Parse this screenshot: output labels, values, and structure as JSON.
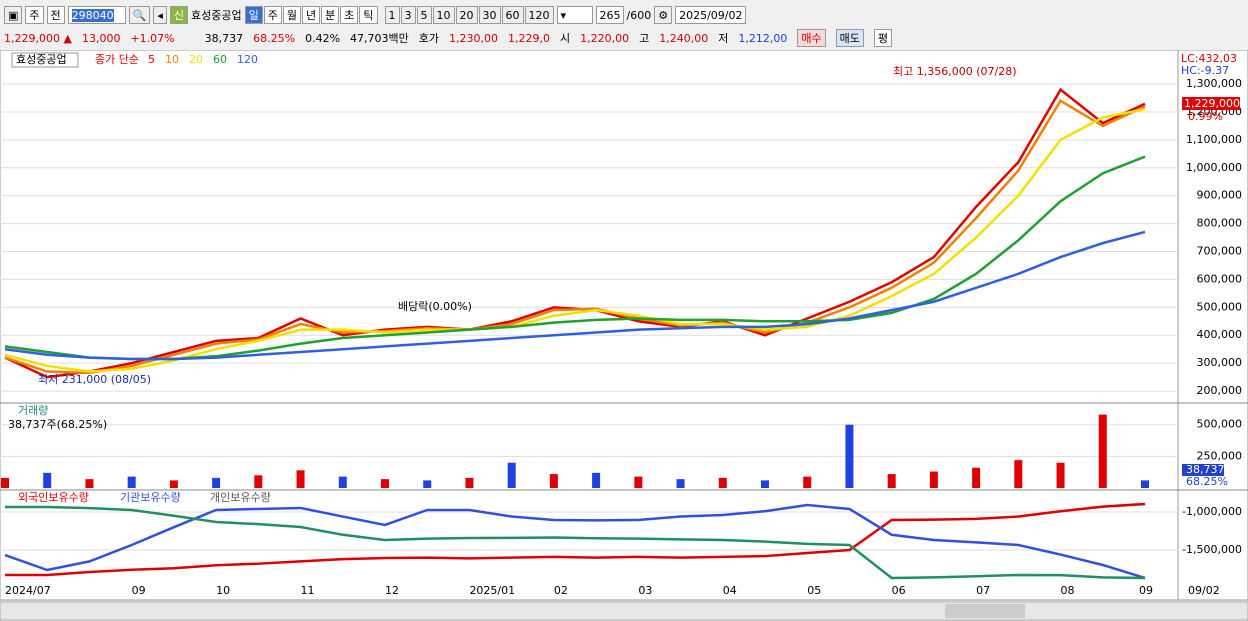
{
  "toolbar": {
    "market": "주",
    "prev": "전",
    "code": "298040",
    "badge": "신",
    "name": "효성중공업",
    "periods": [
      "일",
      "주",
      "월",
      "년",
      "분",
      "초",
      "틱"
    ],
    "intervals": [
      "1",
      "3",
      "5",
      "10",
      "20",
      "30",
      "60",
      "120"
    ],
    "count": "265",
    "max": "/600",
    "date": "2025/09/02"
  },
  "quote": {
    "price": "1,229,000 ▲",
    "change": "13,000",
    "rate": "+1.07%",
    "volume": "38,737",
    "vol_ratio": "68.25%",
    "turnover": "0.42%",
    "amount": "47,703백만",
    "ask_label": "호가",
    "ask": "1,230,00",
    "bid": "1,229,0",
    "open_label": "시",
    "open": "1,220,00",
    "high_label": "고",
    "high": "1,240,00",
    "low_label": "저",
    "low": "1,212,00",
    "buy": "매수",
    "sell": "매도",
    "avg": "평"
  },
  "chart_data": [
    {
      "type": "line",
      "title": "효성중공업",
      "legend_prefix": "종가 단순",
      "categories": [
        "2024/07",
        null,
        null,
        "09",
        null,
        "10",
        null,
        "11",
        null,
        "12",
        null,
        "2025/01",
        null,
        "02",
        null,
        "03",
        null,
        "04",
        null,
        "05",
        null,
        "06",
        null,
        "07",
        null,
        "08",
        null,
        "09"
      ],
      "series": [
        {
          "name": "5",
          "color": "#e00000",
          "values": [
            320000,
            250000,
            270000,
            300000,
            340000,
            380000,
            390000,
            460000,
            400000,
            420000,
            430000,
            420000,
            450000,
            500000,
            490000,
            450000,
            430000,
            450000,
            400000,
            460000,
            520000,
            590000,
            680000,
            860000,
            1020000,
            1280000,
            1160000,
            1229000
          ]
        },
        {
          "name": "10",
          "color": "#f08000",
          "values": [
            320000,
            270000,
            265000,
            290000,
            330000,
            370000,
            385000,
            440000,
            410000,
            415000,
            425000,
            420000,
            440000,
            490000,
            495000,
            460000,
            435000,
            445000,
            410000,
            445000,
            500000,
            570000,
            660000,
            820000,
            990000,
            1240000,
            1150000,
            1220000
          ]
        },
        {
          "name": "20",
          "color": "#f0e000",
          "values": [
            330000,
            290000,
            270000,
            280000,
            310000,
            350000,
            380000,
            420000,
            420000,
            410000,
            420000,
            420000,
            430000,
            470000,
            490000,
            470000,
            440000,
            440000,
            420000,
            430000,
            470000,
            540000,
            620000,
            750000,
            900000,
            1100000,
            1180000,
            1210000
          ]
        },
        {
          "name": "60",
          "color": "#20a030",
          "values": [
            360000,
            340000,
            320000,
            315000,
            315000,
            325000,
            345000,
            370000,
            390000,
            400000,
            410000,
            420000,
            430000,
            445000,
            455000,
            460000,
            455000,
            455000,
            450000,
            450000,
            455000,
            480000,
            530000,
            620000,
            740000,
            880000,
            980000,
            1040000
          ]
        },
        {
          "name": "120",
          "color": "#3060e0",
          "values": [
            350000,
            330000,
            320000,
            315000,
            315000,
            320000,
            330000,
            340000,
            350000,
            360000,
            370000,
            380000,
            390000,
            400000,
            410000,
            420000,
            425000,
            430000,
            430000,
            440000,
            460000,
            490000,
            520000,
            570000,
            620000,
            680000,
            730000,
            770000
          ]
        }
      ],
      "ylim": [
        168000,
        1404000
      ],
      "yticks": [
        {
          "value": 200000,
          "label": "200,000"
        },
        {
          "value": 300000,
          "label": "300,000"
        },
        {
          "value": 400000,
          "label": "400,000"
        },
        {
          "value": 500000,
          "label": "500,000"
        },
        {
          "value": 600000,
          "label": "600,000"
        },
        {
          "value": 700000,
          "label": "700,000"
        },
        {
          "value": 800000,
          "label": "800,000"
        },
        {
          "value": 900000,
          "label": "900,000"
        },
        {
          "value": 1000000,
          "label": "1,000,000"
        },
        {
          "value": 1100000,
          "label": "1,100,000"
        },
        {
          "value": 1200000,
          "label": "1,200,000"
        },
        {
          "value": 1300000,
          "label": "1,300,000"
        }
      ],
      "grid": true,
      "annotations": {
        "high": "최고 1,356,000 (07/28)",
        "low": "최저 231,000 (08/05)",
        "dividend": "배당락(0.00%)",
        "lc": "LC:432,03",
        "hc": "HC:-9.37",
        "last": "1,229,000",
        "last_rate": "0.99%"
      }
    },
    {
      "type": "bar",
      "title": "거래량",
      "subtitle": "38,737주(68.25%)",
      "values": [
        80000,
        120000,
        70000,
        90000,
        60000,
        80000,
        100000,
        140000,
        90000,
        70000,
        60000,
        80000,
        200000,
        110000,
        120000,
        90000,
        70000,
        80000,
        60000,
        90000,
        500000,
        110000,
        130000,
        160000,
        220000,
        200000,
        580000,
        60000
      ],
      "colors": [
        "#e00000",
        "#2040e0",
        "#e00000",
        "#2040e0",
        "#e00000",
        "#2040e0",
        "#e00000",
        "#e00000",
        "#2040e0",
        "#e00000",
        "#2040e0",
        "#e00000",
        "#2040e0",
        "#e00000",
        "#2040e0",
        "#e00000",
        "#2040e0",
        "#e00000",
        "#2040e0",
        "#e00000",
        "#2040e0",
        "#e00000",
        "#e00000",
        "#e00000",
        "#e00000",
        "#e00000",
        "#e00000",
        "#2040e0"
      ],
      "ylim": [
        0,
        656000
      ],
      "yticks": [
        {
          "value": 250000,
          "label": "250,000"
        },
        {
          "value": 500000,
          "label": "500,000"
        }
      ],
      "grid": true,
      "annotations": {
        "last": "38,737",
        "ratio": "68.25%"
      }
    },
    {
      "type": "line",
      "series": [
        {
          "name": "외국인보유수량",
          "color": "#e00000",
          "values": [
            -1829000,
            -1829000,
            -1790000,
            -1760000,
            -1740000,
            -1700000,
            -1680000,
            -1650000,
            -1620000,
            -1605000,
            -1600000,
            -1610000,
            -1600000,
            -1590000,
            -1600000,
            -1590000,
            -1600000,
            -1590000,
            -1580000,
            -1540000,
            -1500000,
            -1105000,
            -1100000,
            -1090000,
            -1060000,
            -990000,
            -930000,
            -895000
          ]
        },
        {
          "name": "기관보유수량",
          "color": "#3050e0",
          "values": [
            -1566000,
            -1763000,
            -1650000,
            -1434000,
            -1200000,
            -974000,
            -960000,
            -947000,
            -1060000,
            -1171000,
            -974000,
            -974000,
            -1060000,
            -1105000,
            -1110000,
            -1105000,
            -1060000,
            -1039000,
            -990000,
            -908000,
            -960000,
            -1300000,
            -1368000,
            -1400000,
            -1434000,
            -1560000,
            -1697000,
            -1868000
          ]
        },
        {
          "name": "개인보유수량",
          "color": "#209060",
          "values": [
            -934000,
            -934000,
            -950000,
            -974000,
            -1050000,
            -1132000,
            -1160000,
            -1197000,
            -1300000,
            -1368000,
            -1350000,
            -1342000,
            -1340000,
            -1335000,
            -1345000,
            -1350000,
            -1360000,
            -1368000,
            -1390000,
            -1420000,
            -1434000,
            -1868000,
            -1860000,
            -1845000,
            -1829000,
            -1830000,
            -1860000,
            -1868000
          ]
        }
      ],
      "ylim": [
        -1934000,
        -724000
      ],
      "yticks": [
        {
          "value": -1000000,
          "label": "-1,000,000"
        },
        {
          "value": -1500000,
          "label": "-1,500,000"
        }
      ],
      "grid": true,
      "x_end_label": "09/02"
    }
  ]
}
